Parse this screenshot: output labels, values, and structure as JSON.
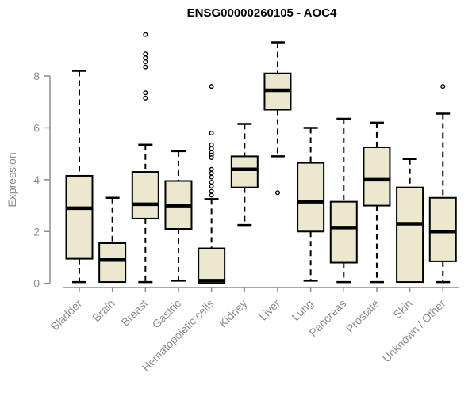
{
  "title": "ENSG00000260105 - AOC4",
  "ylabel": "Expression",
  "colors": {
    "box_fill": "#ece8cd",
    "box_border": "#000000",
    "median": "#000000",
    "whisker": "#000000",
    "outlier_stroke": "#000000",
    "axis": "#8c8c8c",
    "tick_label": "#8c8c8c",
    "title": "#000000",
    "background": "#ffffff"
  },
  "chart_data": {
    "type": "boxplot",
    "title": "ENSG00000260105 - AOC4",
    "xlabel": "",
    "ylabel": "Expression",
    "yticks": [
      0,
      2,
      4,
      6,
      8
    ],
    "ylim": [
      -0.3,
      9.8
    ],
    "grid": false,
    "legend": false,
    "categories": [
      "Bladder",
      "Brain",
      "Breast",
      "Gastric",
      "Hematopoietic cells",
      "Kidney",
      "Liver",
      "Lung",
      "Pancreas",
      "Prostate",
      "Skin",
      "Unknown / Other"
    ],
    "series": [
      {
        "name": "Bladder",
        "whisker_low": 0.05,
        "q1": 0.95,
        "median": 2.9,
        "q3": 4.15,
        "whisker_high": 8.2,
        "outliers": []
      },
      {
        "name": "Brain",
        "whisker_low": 0.05,
        "q1": 0.05,
        "median": 0.9,
        "q3": 1.55,
        "whisker_high": 3.3,
        "outliers": []
      },
      {
        "name": "Breast",
        "whisker_low": 0.05,
        "q1": 2.5,
        "median": 3.05,
        "q3": 4.3,
        "whisker_high": 5.35,
        "outliers": [
          9.6,
          8.85,
          8.7,
          8.55,
          8.35,
          7.35,
          7.15
        ]
      },
      {
        "name": "Gastric",
        "whisker_low": 0.1,
        "q1": 2.1,
        "median": 3.0,
        "q3": 3.95,
        "whisker_high": 5.1,
        "outliers": []
      },
      {
        "name": "Hematopoietic cells",
        "whisker_low": 0.0,
        "q1": 0.0,
        "median": 0.1,
        "q3": 1.35,
        "whisker_high": 3.25,
        "outliers": [
          7.6,
          5.8,
          5.35,
          5.2,
          5.05,
          4.95,
          4.85,
          4.4,
          4.25,
          4.1,
          3.9,
          3.75,
          3.55,
          3.4
        ]
      },
      {
        "name": "Kidney",
        "whisker_low": 2.25,
        "q1": 3.7,
        "median": 4.4,
        "q3": 4.9,
        "whisker_high": 6.15,
        "outliers": []
      },
      {
        "name": "Liver",
        "whisker_low": 4.9,
        "q1": 6.7,
        "median": 7.45,
        "q3": 8.1,
        "whisker_high": 9.3,
        "outliers": [
          3.5
        ]
      },
      {
        "name": "Lung",
        "whisker_low": 0.1,
        "q1": 2.0,
        "median": 3.15,
        "q3": 4.65,
        "whisker_high": 6.0,
        "outliers": []
      },
      {
        "name": "Pancreas",
        "whisker_low": 0.05,
        "q1": 0.8,
        "median": 2.15,
        "q3": 3.15,
        "whisker_high": 6.35,
        "outliers": []
      },
      {
        "name": "Prostate",
        "whisker_low": 0.05,
        "q1": 3.0,
        "median": 4.0,
        "q3": 5.25,
        "whisker_high": 6.2,
        "outliers": []
      },
      {
        "name": "Skin",
        "whisker_low": 0.05,
        "q1": 0.05,
        "median": 2.3,
        "q3": 3.7,
        "whisker_high": 4.8,
        "outliers": []
      },
      {
        "name": "Unknown / Other",
        "whisker_low": 0.05,
        "q1": 0.85,
        "median": 2.0,
        "q3": 3.3,
        "whisker_high": 6.55,
        "outliers": [
          7.6
        ]
      }
    ]
  }
}
